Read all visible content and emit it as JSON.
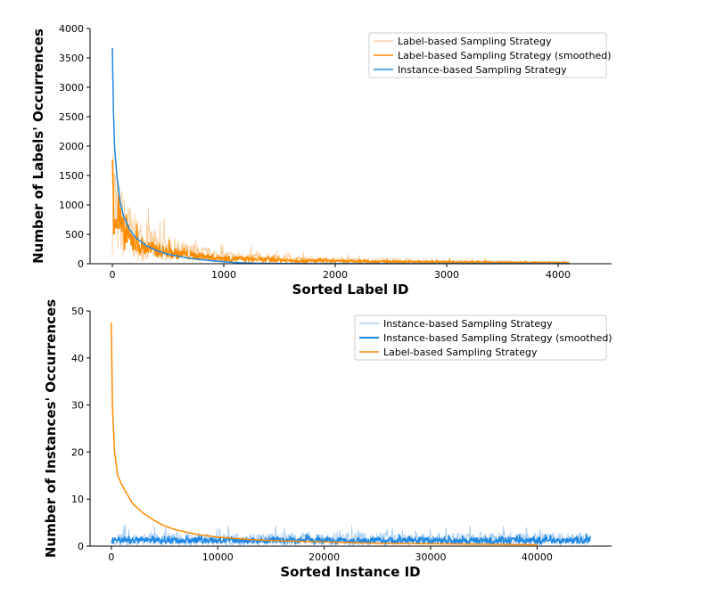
{
  "chart_data": [
    {
      "type": "line",
      "xlabel": "Sorted Label ID",
      "ylabel": "Number of Labels' Occurrences",
      "xlim": [
        -200,
        4480
      ],
      "ylim": [
        0,
        4000
      ],
      "xticks": [
        0,
        1000,
        2000,
        3000,
        4000
      ],
      "yticks": [
        0,
        500,
        1000,
        1500,
        2000,
        2500,
        3000,
        3500,
        4000
      ],
      "legend_position": "top-right",
      "series": [
        {
          "name": "Label-based Sampling Strategy",
          "color": "#f9d0a0",
          "style": "raw-noisy",
          "x": [
            0,
            20,
            50,
            100,
            200,
            300,
            500,
            700,
            1000,
            1500,
            2000,
            3000,
            4100
          ],
          "values": [
            1600,
            1000,
            800,
            650,
            450,
            350,
            250,
            180,
            120,
            80,
            55,
            35,
            20
          ]
        },
        {
          "name": "Label-based Sampling Strategy (smoothed)",
          "color": "#ff8c00",
          "style": "noisy",
          "x": [
            0,
            20,
            50,
            100,
            200,
            300,
            500,
            700,
            1000,
            1500,
            2000,
            3000,
            4100
          ],
          "values": [
            1580,
            900,
            750,
            500,
            350,
            270,
            190,
            140,
            90,
            60,
            40,
            25,
            15
          ]
        },
        {
          "name": "Instance-based Sampling Strategy",
          "color": "#1e88e5",
          "style": "smooth",
          "x": [
            0,
            10,
            20,
            40,
            70,
            100,
            150,
            200,
            300,
            400,
            500,
            700,
            900,
            1100,
            1300,
            1600,
            2000,
            4100
          ],
          "values": [
            3670,
            2600,
            2000,
            1500,
            1050,
            820,
            600,
            460,
            310,
            220,
            160,
            90,
            50,
            20,
            8,
            3,
            2,
            1
          ]
        }
      ]
    },
    {
      "type": "line",
      "xlabel": "Sorted Instance ID",
      "ylabel": "Number of Instances' Occurrences",
      "xlim": [
        -2000,
        47000
      ],
      "ylim": [
        0,
        50
      ],
      "xticks": [
        0,
        10000,
        20000,
        30000,
        40000
      ],
      "yticks": [
        0,
        10,
        20,
        30,
        40,
        50
      ],
      "legend_position": "top-right",
      "series": [
        {
          "name": "Instance-based Sampling Strategy",
          "color": "#a9cff3",
          "style": "raw-noisy",
          "x": [
            0,
            45000
          ],
          "values": [
            1.5,
            1.5
          ]
        },
        {
          "name": "Instance-based Sampling Strategy (smoothed)",
          "color": "#1e88e5",
          "style": "noisy",
          "x": [
            0,
            45000
          ],
          "values": [
            1.2,
            1.2
          ]
        },
        {
          "name": "Label-based Sampling Strategy",
          "color": "#ff8c00",
          "style": "smooth",
          "x": [
            0,
            100,
            300,
            600,
            1000,
            1500,
            2000,
            3000,
            4000,
            5000,
            6000,
            8000,
            10000,
            13000,
            16000,
            20000,
            25000,
            30000,
            35000,
            40000
          ],
          "values": [
            47.5,
            30,
            20,
            15,
            13,
            11,
            9,
            7,
            5.5,
            4.3,
            3.5,
            2.5,
            1.9,
            1.4,
            1.1,
            0.9,
            0.6,
            0.5,
            0.4,
            0.3
          ]
        }
      ]
    }
  ]
}
